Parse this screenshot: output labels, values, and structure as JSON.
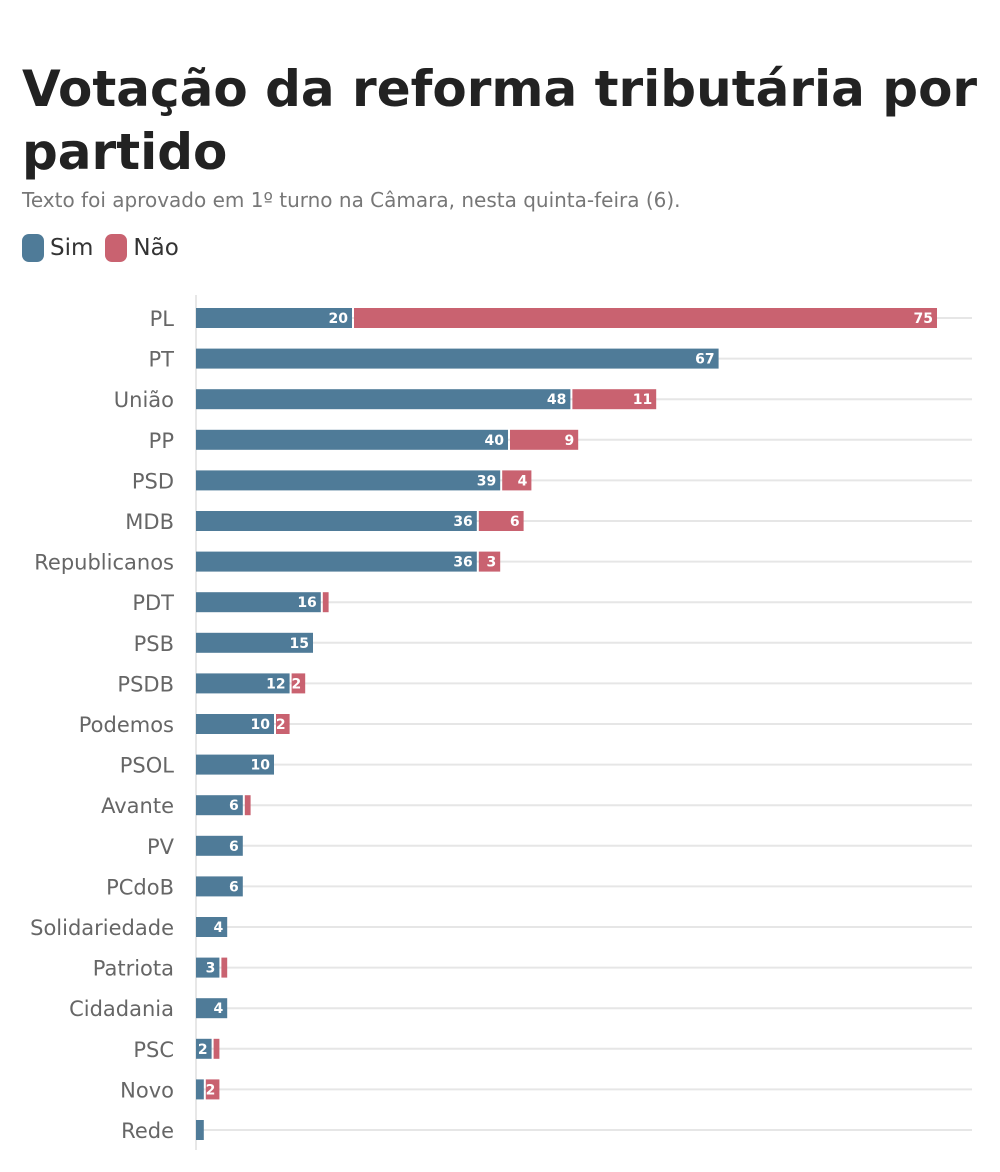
{
  "title": "Votação da reforma tributária por partido",
  "subtitle": "Texto foi aprovado em 1º turno na Câmara, nesta quinta-feira (6).",
  "colors": {
    "sim": "#4f7b98",
    "nao": "#c96270",
    "grid": "#e6e6e6",
    "axis": "#cfcfcf"
  },
  "chart_data": {
    "type": "bar",
    "orientation": "horizontal",
    "stacked": true,
    "categories": [
      "PL",
      "PT",
      "União",
      "PP",
      "PSD",
      "MDB",
      "Republicanos",
      "PDT",
      "PSB",
      "PSDB",
      "Podemos",
      "PSOL",
      "Avante",
      "PV",
      "PCdoB",
      "Solidariedade",
      "Patriota",
      "Cidadania",
      "PSC",
      "Novo",
      "Rede"
    ],
    "series": [
      {
        "name": "Sim",
        "color": "#4f7b98",
        "values": [
          20,
          67,
          48,
          40,
          39,
          36,
          36,
          16,
          15,
          12,
          10,
          10,
          6,
          6,
          6,
          4,
          3,
          4,
          2,
          1,
          1
        ],
        "labels": [
          "20",
          "67",
          "48",
          "40",
          "39",
          "36",
          "36",
          "16",
          "15",
          "12",
          "10",
          "10",
          "6",
          "6",
          "6",
          "4",
          "3",
          "4",
          "2",
          "",
          ""
        ]
      },
      {
        "name": "Não",
        "color": "#c96270",
        "values": [
          75,
          0,
          11,
          9,
          4,
          6,
          3,
          1,
          0,
          2,
          2,
          0,
          1,
          0,
          0,
          0,
          1,
          0,
          1,
          2,
          0
        ],
        "labels": [
          "75",
          "",
          "11",
          "9",
          "4",
          "6",
          "3",
          "",
          "",
          "2",
          "2",
          "",
          "",
          "",
          "",
          "",
          "",
          "",
          "",
          "2",
          ""
        ]
      }
    ],
    "xlim": [
      0,
      100
    ],
    "grid": true,
    "legend": "top-left"
  }
}
